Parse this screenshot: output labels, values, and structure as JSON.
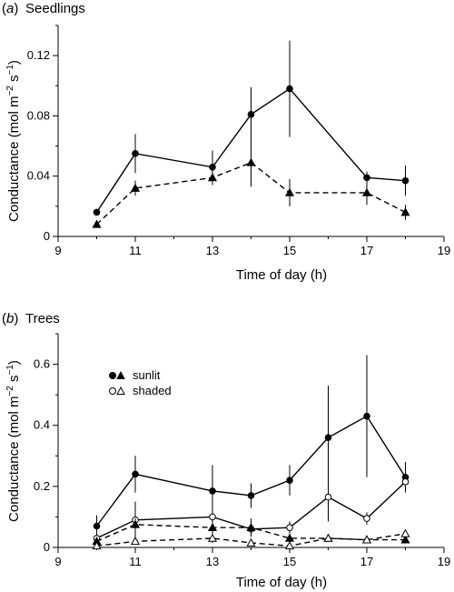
{
  "chart_data": [
    {
      "type": "line",
      "panel_letter": "a",
      "panel_title": "Seedlings",
      "xlabel": "Time of day (h)",
      "ylabel_main": "Conductance (mol m",
      "ylabel_sup1": "−2",
      "ylabel_mid": " s",
      "ylabel_sup2": "−1",
      "ylabel_end": ")",
      "xlim": [
        9,
        19
      ],
      "ylim": [
        0,
        0.14
      ],
      "xticks": [
        9,
        11,
        13,
        15,
        17,
        19
      ],
      "yticks": [
        0,
        0.04,
        0.08,
        0.12
      ],
      "ytick_labels": [
        "0",
        "0.04",
        "0.08",
        "0.12"
      ],
      "series": [
        {
          "marker": "filled-circle",
          "dash": "solid",
          "x": [
            10,
            11,
            13,
            14,
            15,
            17,
            18
          ],
          "y": [
            0.016,
            0.055,
            0.046,
            0.081,
            0.098,
            0.039,
            0.037
          ],
          "err": [
            0.002,
            0.013,
            0.011,
            0.018,
            0.032,
            0.004,
            0.01
          ]
        },
        {
          "marker": "filled-triangle",
          "dash": "dashed",
          "x": [
            10,
            11,
            13,
            14,
            15,
            17,
            18
          ],
          "y": [
            0.008,
            0.032,
            0.039,
            0.049,
            0.029,
            0.029,
            0.016
          ],
          "err": [
            0.002,
            0.005,
            0.005,
            0.016,
            0.009,
            0.008,
            0.005
          ]
        }
      ]
    },
    {
      "type": "line",
      "panel_letter": "b",
      "panel_title": "Trees",
      "xlabel": "Time of day (h)",
      "ylabel_main": "Conductance (mol m",
      "ylabel_sup1": "−2",
      "ylabel_mid": " s",
      "ylabel_sup2": "−1",
      "ylabel_end": ")",
      "xlim": [
        9,
        19
      ],
      "ylim": [
        0,
        0.7
      ],
      "xticks": [
        9,
        11,
        13,
        15,
        17,
        19
      ],
      "yticks": [
        0,
        0.2,
        0.4,
        0.6
      ],
      "ytick_labels": [
        "0",
        "0.2",
        "0.4",
        "0.6"
      ],
      "legend": [
        {
          "label": "sunlit",
          "markers": [
            "filled-circle",
            "filled-triangle"
          ]
        },
        {
          "label": "shaded",
          "markers": [
            "open-circle",
            "open-triangle"
          ]
        }
      ],
      "series": [
        {
          "group": "sunlit",
          "marker": "filled-circle",
          "dash": "solid",
          "x": [
            10,
            11,
            13,
            14,
            15,
            16,
            17,
            18
          ],
          "y": [
            0.07,
            0.24,
            0.185,
            0.17,
            0.22,
            0.36,
            0.43,
            0.23
          ],
          "err": [
            0.035,
            0.06,
            0.085,
            0.04,
            0.05,
            0.17,
            0.2,
            0.05
          ]
        },
        {
          "group": "shaded",
          "marker": "open-circle",
          "dash": "solid",
          "x": [
            10,
            11,
            13,
            14,
            15,
            16,
            17,
            18
          ],
          "y": [
            0.03,
            0.09,
            0.1,
            0.06,
            0.065,
            0.165,
            0.095,
            0.215
          ],
          "err": [
            0.02,
            0.06,
            0.05,
            0.02,
            0.02,
            0.08,
            0.02,
            0.03
          ]
        },
        {
          "group": "sunlit",
          "marker": "filled-triangle",
          "dash": "dashed",
          "x": [
            10,
            11,
            13,
            14,
            15,
            16,
            17,
            18
          ],
          "y": [
            0.02,
            0.075,
            0.065,
            0.065,
            0.03,
            0.03,
            0.025,
            0.025
          ],
          "err": [
            0.01,
            0.02,
            0.02,
            0.03,
            0.015,
            0.01,
            0.01,
            0.01
          ]
        },
        {
          "group": "shaded",
          "marker": "open-triangle",
          "dash": "dashed",
          "x": [
            10,
            11,
            13,
            14,
            15,
            16,
            17,
            18
          ],
          "y": [
            0.005,
            0.02,
            0.03,
            0.015,
            0.005,
            0.03,
            0.025,
            0.045
          ],
          "err": [
            0.005,
            0.01,
            0.015,
            0.01,
            0.005,
            0.01,
            0.01,
            0.01
          ]
        }
      ]
    }
  ]
}
